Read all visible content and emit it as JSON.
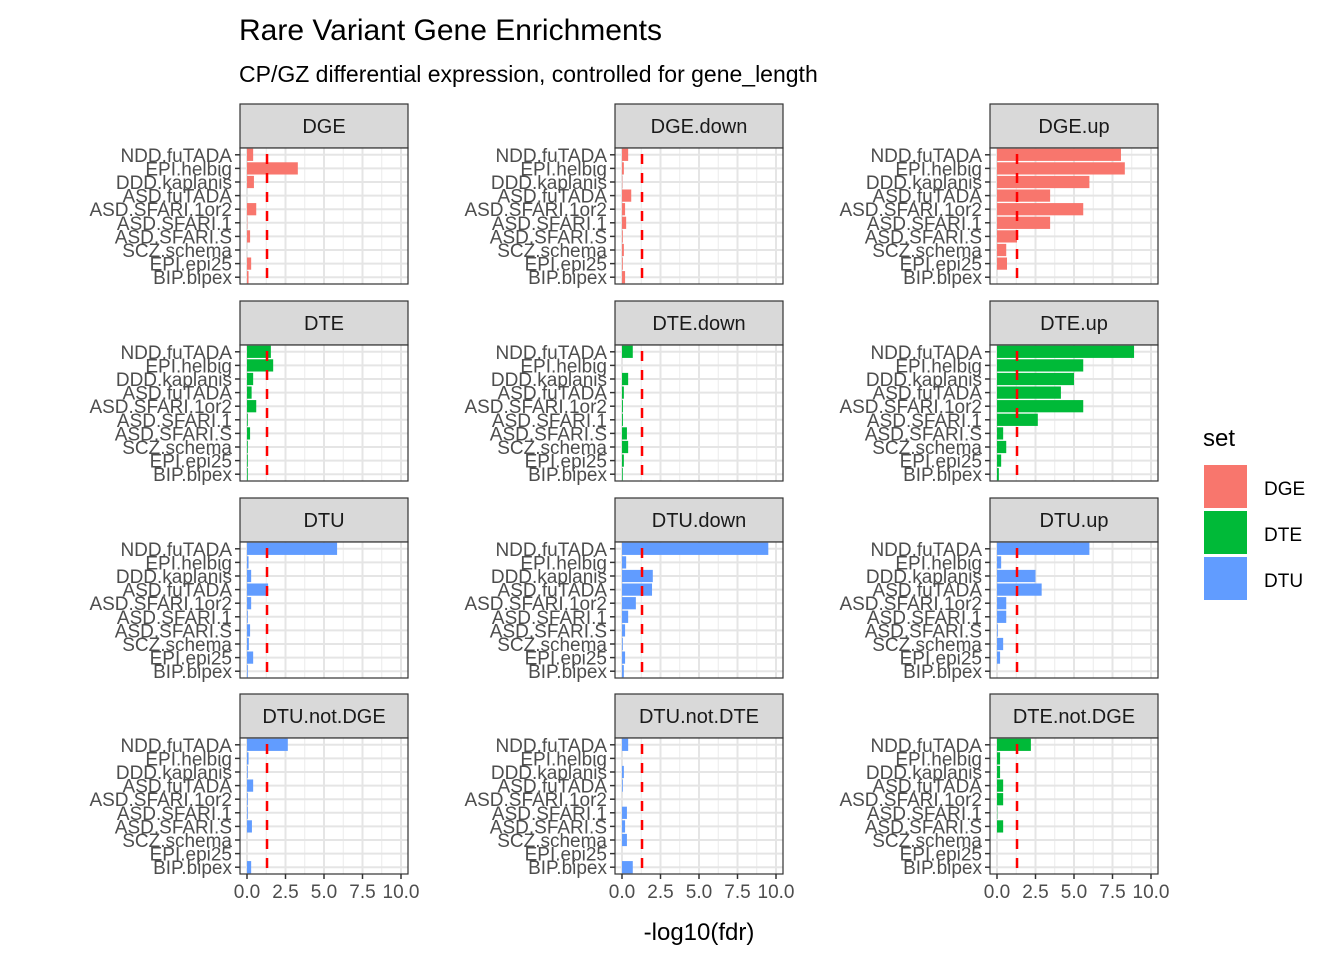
{
  "chart_data": {
    "type": "bar",
    "orientation": "horizontal",
    "title": "Rare Variant Gene Enrichments",
    "subtitle": "CP/GZ differential expression, controlled for gene_length",
    "xlabel": "-log10(fdr)",
    "ylabel": "",
    "xlim": [
      0,
      10
    ],
    "x_ticks": [
      "0.0",
      "2.5",
      "5.0",
      "7.5",
      "10.0"
    ],
    "x_tick_values": [
      0,
      2.5,
      5,
      7.5,
      10
    ],
    "grid": true,
    "threshold_line": {
      "value": 1.3,
      "style": "dashed",
      "color": "#ff0000"
    },
    "categories": [
      "NDD.fuTADA",
      "EPI.helbig",
      "DDD.kaplanis",
      "ASD.fuTADA",
      "ASD.SFARI.1or2",
      "ASD.SFARI.1",
      "ASD.SFARI.S",
      "SCZ.schema",
      "EPI.epi25",
      "BIP.bipex"
    ],
    "legend": {
      "title": "set",
      "position": "right",
      "entries": [
        {
          "label": "DGE",
          "color": "#F8766D"
        },
        {
          "label": "DTE",
          "color": "#00BA38"
        },
        {
          "label": "DTU",
          "color": "#619CFF"
        }
      ]
    },
    "panels": [
      {
        "name": "DGE",
        "set": "DGE",
        "values": [
          0.4,
          3.3,
          0.45,
          0.0,
          0.6,
          0.02,
          0.2,
          0.0,
          0.27,
          0.1
        ]
      },
      {
        "name": "DGE.down",
        "set": "DGE",
        "values": [
          0.4,
          0.12,
          0.02,
          0.6,
          0.2,
          0.27,
          0.05,
          0.12,
          0.05,
          0.2
        ]
      },
      {
        "name": "DGE.up",
        "set": "DGE",
        "values": [
          8.05,
          8.3,
          6.0,
          3.45,
          5.6,
          3.45,
          1.3,
          0.6,
          0.65,
          0.0
        ]
      },
      {
        "name": "DTE",
        "set": "DTE",
        "values": [
          1.55,
          1.7,
          0.4,
          0.3,
          0.6,
          0.05,
          0.2,
          0.05,
          0.05,
          0.05
        ]
      },
      {
        "name": "DTE.down",
        "set": "DTE",
        "values": [
          0.7,
          0.0,
          0.4,
          0.12,
          0.06,
          0.06,
          0.32,
          0.4,
          0.12,
          0.05
        ]
      },
      {
        "name": "DTE.up",
        "set": "DTE",
        "values": [
          8.9,
          5.6,
          5.0,
          4.15,
          5.6,
          2.65,
          0.4,
          0.6,
          0.27,
          0.12
        ]
      },
      {
        "name": "DTU",
        "set": "DTU",
        "values": [
          5.85,
          0.1,
          0.27,
          1.37,
          0.27,
          0.05,
          0.2,
          0.12,
          0.4,
          0.05
        ]
      },
      {
        "name": "DTU.down",
        "set": "DTU",
        "values": [
          9.5,
          0.27,
          2.0,
          1.95,
          0.9,
          0.4,
          0.2,
          0.05,
          0.2,
          0.12
        ]
      },
      {
        "name": "DTU.up",
        "set": "DTU",
        "values": [
          6.0,
          0.27,
          2.5,
          2.9,
          0.6,
          0.6,
          0.05,
          0.4,
          0.2,
          0.0
        ]
      },
      {
        "name": "DTU.not.DGE",
        "set": "DTU",
        "values": [
          2.65,
          0.1,
          0.05,
          0.4,
          0.05,
          0.05,
          0.32,
          0.0,
          0.0,
          0.27
        ]
      },
      {
        "name": "DTU.not.DTE",
        "set": "DTU",
        "values": [
          0.4,
          0.0,
          0.12,
          0.05,
          0.0,
          0.32,
          0.2,
          0.32,
          0.0,
          0.7
        ]
      },
      {
        "name": "DTE.not.DGE",
        "set": "DTE",
        "values": [
          2.2,
          0.2,
          0.2,
          0.4,
          0.4,
          0.02,
          0.4,
          0.0,
          0.0,
          0.0
        ]
      }
    ]
  }
}
